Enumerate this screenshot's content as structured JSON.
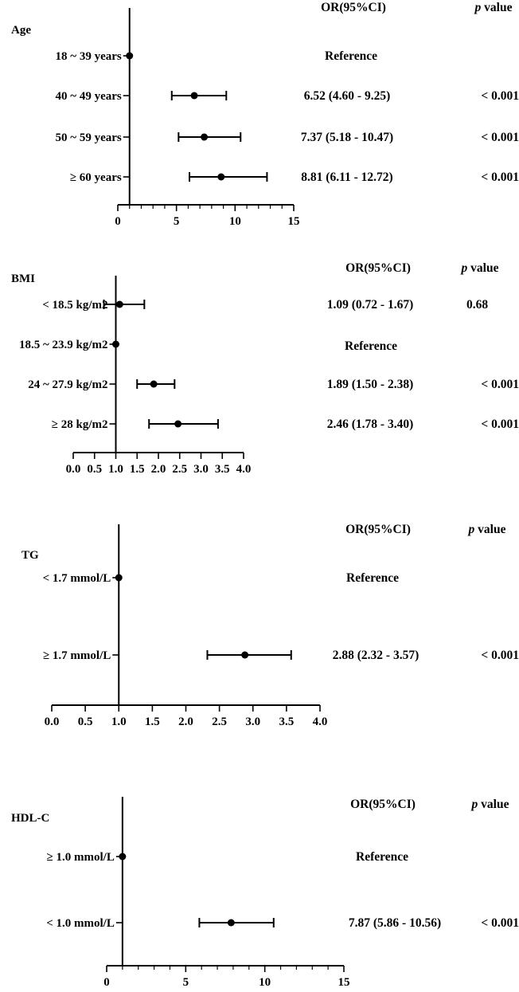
{
  "chart_data": [
    {
      "type": "forest",
      "title": "Age",
      "header_or": "OR(95%CI)",
      "header_p_italic": "p",
      "header_p_rest": " value",
      "xlim": [
        0,
        15
      ],
      "xticks": [
        "0",
        "5",
        "10",
        "15"
      ],
      "rows": [
        {
          "label": "18 ~ 39 years",
          "or": 1,
          "lo": 1,
          "hi": 1,
          "ci_text": "Reference",
          "p": ""
        },
        {
          "label": "40 ~ 49 years",
          "or": 6.52,
          "lo": 4.6,
          "hi": 9.25,
          "ci_text": "6.52 (4.60 - 9.25)",
          "p": "< 0.001"
        },
        {
          "label": "50 ~ 59 years",
          "or": 7.37,
          "lo": 5.18,
          "hi": 10.47,
          "ci_text": "7.37 (5.18 - 10.47)",
          "p": "< 0.001"
        },
        {
          "label": "≥ 60 years",
          "or": 8.81,
          "lo": 6.11,
          "hi": 12.72,
          "ci_text": "8.81 (6.11 - 12.72)",
          "p": "< 0.001"
        }
      ]
    },
    {
      "type": "forest",
      "title": "BMI",
      "header_or": "OR(95%CI)",
      "header_p_italic": "p",
      "header_p_rest": " value",
      "xlim": [
        0,
        4
      ],
      "xticks": [
        "0.0",
        "0.5",
        "1.0",
        "1.5",
        "2.0",
        "2.5",
        "3.0",
        "3.5",
        "4.0"
      ],
      "rows": [
        {
          "label": "< 18.5 kg/m2",
          "or": 1.09,
          "lo": 0.72,
          "hi": 1.67,
          "ci_text": "1.09 (0.72 - 1.67)",
          "p": "0.68"
        },
        {
          "label": "18.5 ~ 23.9 kg/m2",
          "or": 1,
          "lo": 1,
          "hi": 1,
          "ci_text": "Reference",
          "p": ""
        },
        {
          "label": "24 ~ 27.9 kg/m2",
          "or": 1.89,
          "lo": 1.5,
          "hi": 2.38,
          "ci_text": "1.89 (1.50 - 2.38)",
          "p": "< 0.001"
        },
        {
          "label": "≥ 28 kg/m2",
          "or": 2.46,
          "lo": 1.78,
          "hi": 3.4,
          "ci_text": "2.46 (1.78 - 3.40)",
          "p": "< 0.001"
        }
      ]
    },
    {
      "type": "forest",
      "title": "TG",
      "header_or": "OR(95%CI)",
      "header_p_italic": "p",
      "header_p_rest": " value",
      "xlim": [
        0,
        4
      ],
      "xticks": [
        "0.0",
        "0.5",
        "1.0",
        "1.5",
        "2.0",
        "2.5",
        "3.0",
        "3.5",
        "4.0"
      ],
      "rows": [
        {
          "label": "< 1.7 mmol/L",
          "or": 1,
          "lo": 1,
          "hi": 1,
          "ci_text": "Reference",
          "p": ""
        },
        {
          "label": "≥ 1.7 mmol/L",
          "or": 2.88,
          "lo": 2.32,
          "hi": 3.57,
          "ci_text": "2.88 (2.32 - 3.57)",
          "p": "< 0.001"
        }
      ]
    },
    {
      "type": "forest",
      "title": "HDL-C",
      "header_or": "OR(95%CI)",
      "header_p_italic": "p",
      "header_p_rest": " value",
      "xlim": [
        0,
        15
      ],
      "xticks": [
        "0",
        "5",
        "10",
        "15"
      ],
      "rows": [
        {
          "label": "≥ 1.0 mmol/L",
          "or": 1,
          "lo": 1,
          "hi": 1,
          "ci_text": "Reference",
          "p": ""
        },
        {
          "label": "< 1.0 mmol/L",
          "or": 7.87,
          "lo": 5.86,
          "hi": 10.56,
          "ci_text": "7.87 (5.86 - 10.56)",
          "p": "< 0.001"
        }
      ]
    }
  ]
}
